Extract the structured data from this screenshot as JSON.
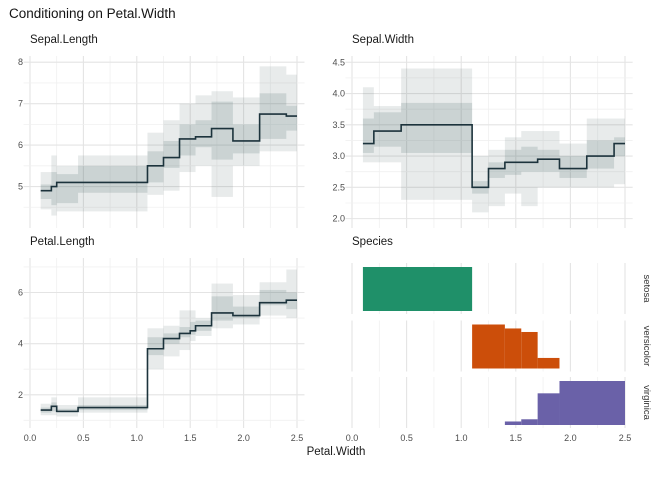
{
  "title": "Conditioning on Petal.Width",
  "xlabel": "Petal.Width",
  "style": {
    "background": "#ffffff",
    "line_color": "#1c333c",
    "band_color": "#4a6868",
    "band_outer_opacity": 0.13,
    "band_inner_opacity": 0.18,
    "grid_major": "#e4e4e4",
    "grid_minor": "#f0f0f0",
    "title_color": "#141414",
    "tick_label_color": "#4d4d4d",
    "strip_label_color": "#333333"
  },
  "chart_data": [
    {
      "type": "line",
      "subtype": "step-with-bands",
      "title": "Sepal.Length",
      "xlabel": "Petal.Width",
      "ylim": [
        4.0,
        8.15
      ],
      "yticks": [
        5,
        6,
        7,
        8
      ],
      "ytick_labels": [
        "5",
        "6",
        "7",
        "8"
      ],
      "yminor": [
        4.5,
        5.5,
        6.5,
        7.5
      ],
      "xlim": [
        -0.06,
        2.57
      ],
      "xticks": [
        0,
        0.5,
        1,
        1.5,
        2,
        2.5
      ],
      "xminor": [
        0.25,
        0.75,
        1.25,
        1.75,
        2.25
      ],
      "xtick_labels": [
        "0.0",
        "0.5",
        "1.0",
        "1.5",
        "2.0",
        "2.5"
      ],
      "grid": true,
      "legend": "none",
      "steps": [
        {
          "x0": 0.1,
          "x1": 0.2,
          "y": 4.9,
          "inner": [
            4.7,
            5.05
          ],
          "outer": [
            4.45,
            5.35
          ]
        },
        {
          "x0": 0.2,
          "x1": 0.25,
          "y": 5.0,
          "inner": [
            4.55,
            5.35
          ],
          "outer": [
            4.3,
            5.75
          ]
        },
        {
          "x0": 0.25,
          "x1": 0.45,
          "y": 5.1,
          "inner": [
            4.6,
            5.3
          ],
          "outer": [
            4.4,
            5.5
          ]
        },
        {
          "x0": 0.45,
          "x1": 1.1,
          "y": 5.1,
          "inner": [
            4.85,
            5.5
          ],
          "outer": [
            4.4,
            5.75
          ]
        },
        {
          "x0": 1.1,
          "x1": 1.25,
          "y": 5.5,
          "inner": [
            5.1,
            5.85
          ],
          "outer": [
            4.8,
            6.3
          ]
        },
        {
          "x0": 1.25,
          "x1": 1.4,
          "y": 5.7,
          "inner": [
            5.45,
            6.1
          ],
          "outer": [
            4.9,
            6.6
          ]
        },
        {
          "x0": 1.4,
          "x1": 1.55,
          "y": 6.15,
          "inner": [
            5.75,
            6.5
          ],
          "outer": [
            5.35,
            7.0
          ]
        },
        {
          "x0": 1.55,
          "x1": 1.7,
          "y": 6.2,
          "inner": [
            5.95,
            6.6
          ],
          "outer": [
            5.5,
            7.2
          ]
        },
        {
          "x0": 1.7,
          "x1": 1.9,
          "y": 6.4,
          "inner": [
            5.65,
            7.05
          ],
          "outer": [
            4.75,
            7.3
          ]
        },
        {
          "x0": 1.9,
          "x1": 2.15,
          "y": 6.1,
          "inner": [
            5.8,
            6.5
          ],
          "outer": [
            5.5,
            7.15
          ]
        },
        {
          "x0": 2.15,
          "x1": 2.4,
          "y": 6.75,
          "inner": [
            6.15,
            7.25
          ],
          "outer": [
            5.85,
            7.9
          ]
        },
        {
          "x0": 2.4,
          "x1": 2.5,
          "y": 6.7,
          "inner": [
            6.35,
            6.95
          ],
          "outer": [
            5.85,
            7.7
          ]
        }
      ]
    },
    {
      "type": "line",
      "subtype": "step-with-bands",
      "title": "Sepal.Width",
      "xlabel": "Petal.Width",
      "ylim": [
        1.85,
        4.6
      ],
      "yticks": [
        2.0,
        2.5,
        3.0,
        3.5,
        4.0,
        4.5
      ],
      "ytick_labels": [
        "2.0",
        "2.5",
        "3.0",
        "3.5",
        "4.0",
        "4.5"
      ],
      "yminor": [
        2.25,
        2.75,
        3.25,
        3.75,
        4.25
      ],
      "xlim": [
        -0.06,
        2.57
      ],
      "xticks": [
        0,
        0.5,
        1,
        1.5,
        2,
        2.5
      ],
      "xminor": [
        0.25,
        0.75,
        1.25,
        1.75,
        2.25
      ],
      "xtick_labels": [
        "0.0",
        "0.5",
        "1.0",
        "1.5",
        "2.0",
        "2.5"
      ],
      "grid": true,
      "legend": "none",
      "steps": [
        {
          "x0": 0.1,
          "x1": 0.2,
          "y": 3.2,
          "inner": [
            3.05,
            3.6
          ],
          "outer": [
            2.9,
            4.1
          ]
        },
        {
          "x0": 0.2,
          "x1": 0.45,
          "y": 3.4,
          "inner": [
            3.15,
            3.7
          ],
          "outer": [
            2.9,
            3.8
          ]
        },
        {
          "x0": 0.45,
          "x1": 1.1,
          "y": 3.5,
          "inner": [
            3.05,
            3.85
          ],
          "outer": [
            2.3,
            4.4
          ]
        },
        {
          "x0": 1.1,
          "x1": 1.25,
          "y": 2.5,
          "inner": [
            2.4,
            2.6
          ],
          "outer": [
            2.1,
            3.0
          ]
        },
        {
          "x0": 1.25,
          "x1": 1.4,
          "y": 2.8,
          "inner": [
            2.65,
            2.9
          ],
          "outer": [
            2.2,
            3.1
          ]
        },
        {
          "x0": 1.4,
          "x1": 1.55,
          "y": 2.9,
          "inner": [
            2.7,
            3.1
          ],
          "outer": [
            2.4,
            3.3
          ]
        },
        {
          "x0": 1.55,
          "x1": 1.7,
          "y": 2.9,
          "inner": [
            2.75,
            3.15
          ],
          "outer": [
            2.2,
            3.4
          ]
        },
        {
          "x0": 1.7,
          "x1": 1.9,
          "y": 2.95,
          "inner": [
            2.75,
            3.1
          ],
          "outer": [
            2.5,
            3.4
          ]
        },
        {
          "x0": 1.9,
          "x1": 2.15,
          "y": 2.8,
          "inner": [
            2.65,
            3.0
          ],
          "outer": [
            2.5,
            3.2
          ]
        },
        {
          "x0": 2.15,
          "x1": 2.4,
          "y": 3.0,
          "inner": [
            2.8,
            3.25
          ],
          "outer": [
            2.5,
            3.6
          ]
        },
        {
          "x0": 2.4,
          "x1": 2.5,
          "y": 3.2,
          "inner": [
            3.0,
            3.3
          ],
          "outer": [
            2.55,
            3.6
          ]
        }
      ]
    },
    {
      "type": "line",
      "subtype": "step-with-bands",
      "title": "Petal.Length",
      "xlabel": "Petal.Width",
      "ylim": [
        0.7,
        7.35
      ],
      "yticks": [
        2,
        4,
        6
      ],
      "ytick_labels": [
        "2",
        "4",
        "6"
      ],
      "yminor": [
        1,
        3,
        5,
        7
      ],
      "xlim": [
        -0.06,
        2.57
      ],
      "xticks": [
        0,
        0.5,
        1,
        1.5,
        2,
        2.5
      ],
      "xminor": [
        0.25,
        0.75,
        1.25,
        1.75,
        2.25
      ],
      "xtick_labels": [
        "0.0",
        "0.5",
        "1.0",
        "1.5",
        "2.0",
        "2.5"
      ],
      "grid": true,
      "legend": "none",
      "steps": [
        {
          "x0": 0.1,
          "x1": 0.2,
          "y": 1.4,
          "inner": [
            1.3,
            1.5
          ],
          "outer": [
            1.2,
            1.65
          ]
        },
        {
          "x0": 0.2,
          "x1": 0.25,
          "y": 1.55,
          "inner": [
            1.35,
            1.7
          ],
          "outer": [
            1.2,
            1.9
          ]
        },
        {
          "x0": 0.25,
          "x1": 0.45,
          "y": 1.35,
          "inner": [
            1.3,
            1.45
          ],
          "outer": [
            1.15,
            1.6
          ]
        },
        {
          "x0": 0.45,
          "x1": 1.1,
          "y": 1.5,
          "inner": [
            1.4,
            1.6
          ],
          "outer": [
            1.3,
            1.9
          ]
        },
        {
          "x0": 1.1,
          "x1": 1.25,
          "y": 3.8,
          "inner": [
            3.55,
            4.25
          ],
          "outer": [
            3.0,
            4.6
          ]
        },
        {
          "x0": 1.25,
          "x1": 1.4,
          "y": 4.2,
          "inner": [
            4.0,
            4.4
          ],
          "outer": [
            3.5,
            4.7
          ]
        },
        {
          "x0": 1.4,
          "x1": 1.5,
          "y": 4.4,
          "inner": [
            4.25,
            4.65
          ],
          "outer": [
            3.75,
            5.3
          ]
        },
        {
          "x0": 1.5,
          "x1": 1.55,
          "y": 4.5,
          "inner": [
            4.35,
            4.85
          ],
          "outer": [
            4.1,
            5.3
          ]
        },
        {
          "x0": 1.55,
          "x1": 1.7,
          "y": 4.7,
          "inner": [
            4.5,
            4.9
          ],
          "outer": [
            4.3,
            5.0
          ]
        },
        {
          "x0": 1.7,
          "x1": 1.9,
          "y": 5.2,
          "inner": [
            4.9,
            5.85
          ],
          "outer": [
            4.6,
            6.35
          ]
        },
        {
          "x0": 1.9,
          "x1": 2.15,
          "y": 5.1,
          "inner": [
            5.0,
            5.45
          ],
          "outer": [
            4.75,
            5.9
          ]
        },
        {
          "x0": 2.15,
          "x1": 2.4,
          "y": 5.6,
          "inner": [
            5.5,
            6.1
          ],
          "outer": [
            5.1,
            6.4
          ]
        },
        {
          "x0": 2.4,
          "x1": 2.5,
          "y": 5.7,
          "inner": [
            5.35,
            6.0
          ],
          "outer": [
            5.0,
            6.9
          ]
        }
      ]
    },
    {
      "type": "bar",
      "subtype": "faceted-conditional-histogram",
      "title": "Species",
      "xlabel": "Petal.Width",
      "xlim": [
        -0.06,
        2.57
      ],
      "xticks": [
        0,
        0.5,
        1,
        1.5,
        2,
        2.5
      ],
      "xminor": [
        0.25,
        0.75,
        1.25,
        1.75,
        2.25
      ],
      "xtick_labels": [
        "0.0",
        "0.5",
        "1.0",
        "1.5",
        "2.0",
        "2.5"
      ],
      "grid": true,
      "legend": "none",
      "ylim": [
        0,
        1
      ],
      "facets": [
        {
          "label": "setosa",
          "color": "#1f9069",
          "bars": [
            {
              "x0": 0.1,
              "x1": 1.1,
              "p": 1.0
            }
          ]
        },
        {
          "label": "versicolor",
          "color": "#cc4e0a",
          "bars": [
            {
              "x0": 1.1,
              "x1": 1.4,
              "p": 1.0
            },
            {
              "x0": 1.4,
              "x1": 1.55,
              "p": 0.91
            },
            {
              "x0": 1.55,
              "x1": 1.7,
              "p": 0.83
            },
            {
              "x0": 1.7,
              "x1": 1.9,
              "p": 0.24
            }
          ]
        },
        {
          "label": "virginica",
          "color": "#6a61a8",
          "bars": [
            {
              "x0": 1.4,
              "x1": 1.55,
              "p": 0.08
            },
            {
              "x0": 1.55,
              "x1": 1.7,
              "p": 0.13
            },
            {
              "x0": 1.7,
              "x1": 1.9,
              "p": 0.72
            },
            {
              "x0": 1.9,
              "x1": 2.5,
              "p": 1.0
            }
          ]
        }
      ]
    }
  ]
}
